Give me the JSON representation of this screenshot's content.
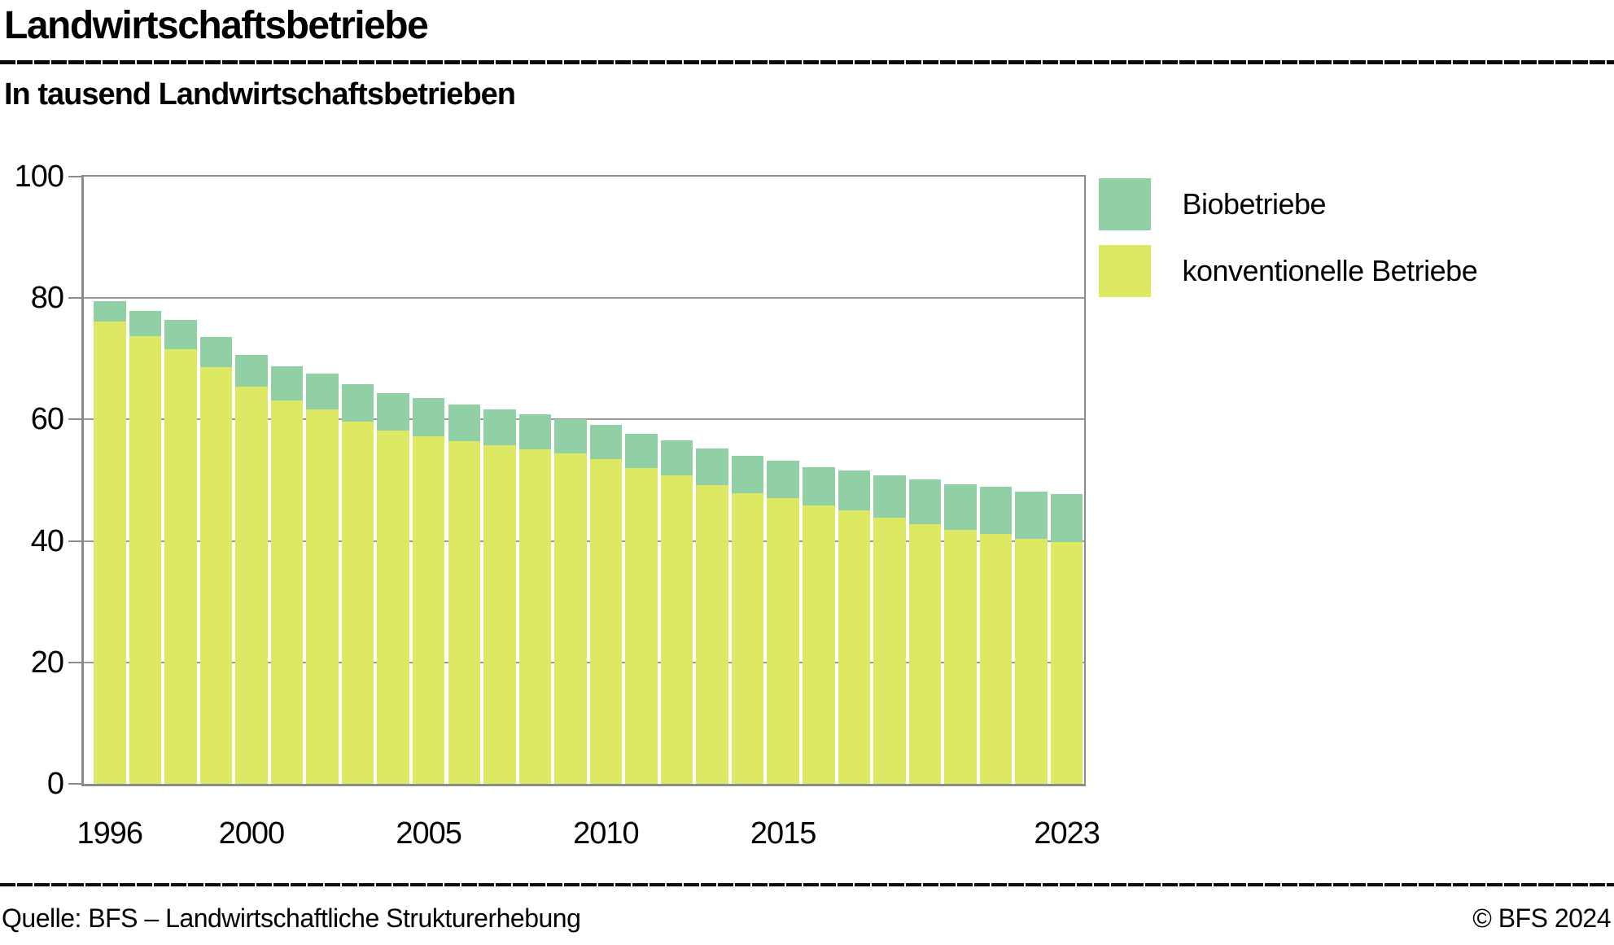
{
  "header": {
    "title": "Landwirtschaftsbetriebe",
    "subtitle": "In tausend Landwirtschaftsbetrieben"
  },
  "legend": {
    "items": [
      {
        "label": "Biobetriebe",
        "color": "#90d0a4"
      },
      {
        "label": "konventionelle Betriebe",
        "color": "#dde863"
      }
    ]
  },
  "footer": {
    "source": "Quelle: BFS – Landwirtschaftliche Strukturerhebung",
    "copyright": "© BFS 2024"
  },
  "chart_data": {
    "type": "bar",
    "stacked": true,
    "title": "In tausend Landwirtschaftsbetrieben",
    "xlabel": "",
    "ylabel": "",
    "ylim": [
      0,
      100
    ],
    "yticks": [
      0,
      20,
      40,
      60,
      80,
      100
    ],
    "xticks": [
      1996,
      2000,
      2005,
      2010,
      2015,
      2023
    ],
    "grid": true,
    "legend_position": "outside-top-right",
    "axis_color": "#8c8c8c",
    "gridline_color": "#999999",
    "categories": [
      1996,
      1997,
      1998,
      1999,
      2000,
      2001,
      2002,
      2003,
      2004,
      2005,
      2006,
      2007,
      2008,
      2009,
      2010,
      2011,
      2012,
      2013,
      2014,
      2015,
      2016,
      2017,
      2018,
      2019,
      2020,
      2021,
      2022,
      2023
    ],
    "series": [
      {
        "name": "konventionelle Betriebe",
        "color": "#dde863",
        "values": [
          76.2,
          73.7,
          71.6,
          68.6,
          65.4,
          63.2,
          61.6,
          59.7,
          58.2,
          57.2,
          56.4,
          55.7,
          55.1,
          54.4,
          53.5,
          52.0,
          50.8,
          49.2,
          47.8,
          47.0,
          45.9,
          45.0,
          43.9,
          42.8,
          41.8,
          41.2,
          40.3,
          39.8
        ]
      },
      {
        "name": "Biobetriebe",
        "color": "#90d0a4",
        "values": [
          3.3,
          4.2,
          4.8,
          5.0,
          5.2,
          5.6,
          5.9,
          6.1,
          6.2,
          6.4,
          6.1,
          6.0,
          5.8,
          5.6,
          5.6,
          5.6,
          5.8,
          6.0,
          6.2,
          6.2,
          6.3,
          6.6,
          6.9,
          7.3,
          7.6,
          7.7,
          7.8,
          7.9
        ]
      }
    ]
  }
}
